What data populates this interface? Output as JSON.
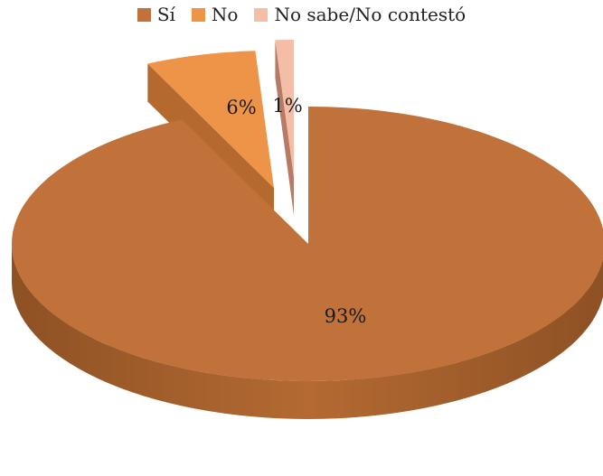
{
  "chart_data": {
    "type": "pie",
    "title": "",
    "legend_position": "top",
    "categories": [
      "Sí",
      "No",
      "No sabe/No contestó"
    ],
    "values": [
      93,
      6,
      1
    ],
    "labels": [
      "93%",
      "6%",
      "1%"
    ],
    "colors": [
      "#C0723A",
      "#ED9448",
      "#F4BDA5"
    ],
    "exploded": true,
    "three_d": true
  }
}
